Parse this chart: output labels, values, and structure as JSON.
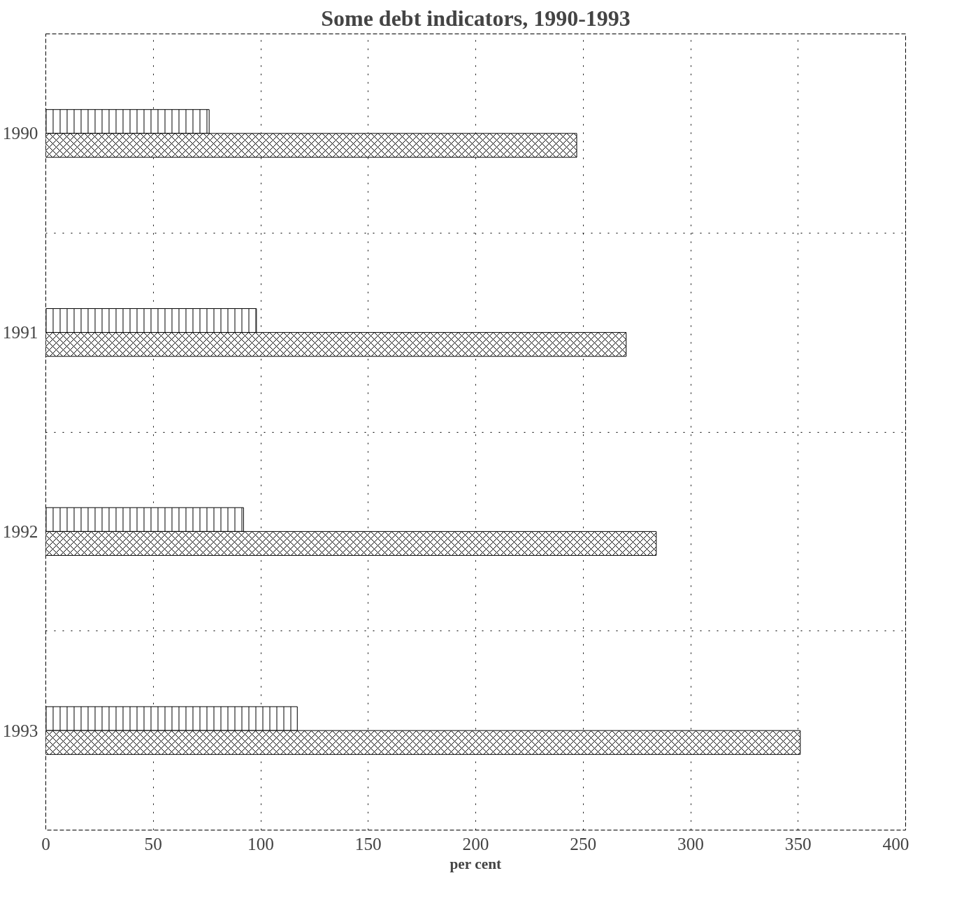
{
  "chart_data": {
    "type": "bar",
    "orientation": "horizontal",
    "title": "Some debt indicators, 1990-1993",
    "xlabel": "per cent",
    "categories": [
      "1990",
      "1991",
      "1992",
      "1993"
    ],
    "series": [
      {
        "color": "#ffffff",
        "values": [
          76,
          98,
          92,
          117
        ]
      },
      {
        "color": "#ffffff",
        "values": [
          247,
          270,
          284,
          351
        ]
      }
    ],
    "xlim": [
      0,
      400
    ],
    "xticks": [
      0,
      50,
      100,
      150,
      200,
      250,
      300,
      350,
      400
    ],
    "grid": true
  }
}
